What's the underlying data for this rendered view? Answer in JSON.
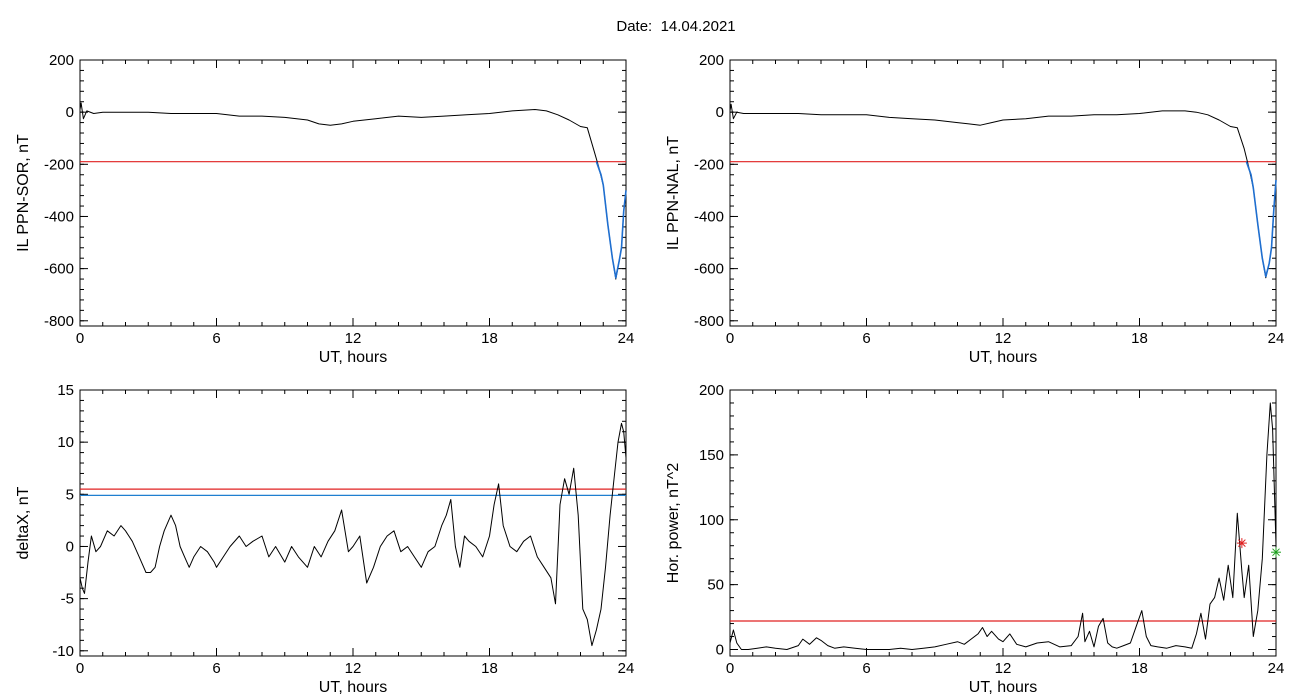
{
  "header": {
    "date_label": "Date:",
    "date_value": "14.04.2021"
  },
  "colors": {
    "trace": "#000000",
    "threshold_red": "#e02020",
    "threshold_blue": "#1f7fd0",
    "overlay_blue": "#1f6fd0",
    "marker_red": "#e02020",
    "marker_green": "#20a020"
  },
  "chart_data": [
    {
      "id": "il-ppn-sor",
      "type": "line",
      "ylabel": "IL PPN-SOR, nT",
      "xlabel": "UT, hours",
      "xlim": [
        0,
        24
      ],
      "ylim": [
        -820,
        200
      ],
      "x_ticks": [
        0,
        6,
        12,
        18,
        24
      ],
      "y_ticks": [
        200,
        0,
        -200,
        -400,
        -600,
        -800
      ],
      "thresholds": [
        {
          "value": -190,
          "color": "red"
        }
      ],
      "series": [
        {
          "color": "black",
          "x": [
            0,
            0.05,
            0.15,
            0.3,
            0.6,
            1.0,
            2.0,
            3.0,
            4.0,
            5.0,
            6.0,
            7.0,
            8.0,
            9.0,
            10.0,
            10.5,
            11.0,
            11.5,
            12.0,
            13.0,
            14.0,
            15.0,
            16.0,
            17.0,
            18.0,
            19.0,
            20.0,
            20.5,
            21.0,
            21.5,
            22.0,
            22.3,
            22.6,
            22.8,
            23.0,
            23.2,
            23.4,
            23.55,
            23.7,
            23.8,
            23.9,
            24.0
          ],
          "y": [
            10,
            35,
            -25,
            5,
            -5,
            0,
            0,
            0,
            -5,
            -5,
            -5,
            -15,
            -15,
            -20,
            -30,
            -45,
            -50,
            -45,
            -35,
            -25,
            -15,
            -20,
            -15,
            -10,
            -5,
            5,
            10,
            5,
            -10,
            -30,
            -55,
            -60,
            -150,
            -210,
            -280,
            -430,
            -560,
            -640,
            -570,
            -520,
            -380,
            -300
          ]
        },
        {
          "color": "blue",
          "x": [
            22.7,
            22.9,
            23.0,
            23.2,
            23.4,
            23.55,
            23.7,
            23.8,
            23.9,
            24.0
          ],
          "y": [
            -190,
            -240,
            -280,
            -430,
            -560,
            -635,
            -570,
            -520,
            -380,
            -300
          ]
        }
      ]
    },
    {
      "id": "il-ppn-nal",
      "type": "line",
      "ylabel": "IL PPN-NAL, nT",
      "xlabel": "UT, hours",
      "xlim": [
        0,
        24
      ],
      "ylim": [
        -820,
        200
      ],
      "x_ticks": [
        0,
        6,
        12,
        18,
        24
      ],
      "y_ticks": [
        200,
        0,
        -200,
        -400,
        -600,
        -800
      ],
      "thresholds": [
        {
          "value": -190,
          "color": "red"
        }
      ],
      "series": [
        {
          "color": "black",
          "x": [
            0,
            0.05,
            0.15,
            0.3,
            0.6,
            1.0,
            2.0,
            3.0,
            4.0,
            5.0,
            6.0,
            7.0,
            8.0,
            9.0,
            10.0,
            10.5,
            11.0,
            11.5,
            12.0,
            13.0,
            14.0,
            15.0,
            16.0,
            17.0,
            18.0,
            19.0,
            20.0,
            20.5,
            21.0,
            21.5,
            22.0,
            22.3,
            22.6,
            22.8,
            23.0,
            23.2,
            23.4,
            23.55,
            23.7,
            23.8,
            23.9,
            24.0
          ],
          "y": [
            5,
            30,
            -25,
            0,
            -5,
            -5,
            -5,
            -5,
            -10,
            -10,
            -10,
            -20,
            -25,
            -30,
            -40,
            -45,
            -50,
            -40,
            -30,
            -25,
            -15,
            -15,
            -10,
            -10,
            -5,
            5,
            5,
            0,
            -10,
            -30,
            -55,
            -60,
            -140,
            -210,
            -290,
            -430,
            -560,
            -635,
            -580,
            -520,
            -380,
            -260
          ]
        },
        {
          "color": "blue",
          "x": [
            22.7,
            22.9,
            23.0,
            23.2,
            23.4,
            23.55,
            23.7,
            23.8,
            23.9,
            24.0
          ],
          "y": [
            -190,
            -240,
            -290,
            -430,
            -560,
            -630,
            -580,
            -520,
            -380,
            -260
          ]
        }
      ]
    },
    {
      "id": "deltax",
      "type": "line",
      "ylabel": "deltaX, nT",
      "xlabel": "UT, hours",
      "xlim": [
        0,
        24
      ],
      "ylim": [
        -10.5,
        15
      ],
      "x_ticks": [
        0,
        6,
        12,
        18,
        24
      ],
      "y_ticks": [
        15,
        10,
        5,
        0,
        -5,
        -10
      ],
      "thresholds": [
        {
          "value": 5.5,
          "color": "red"
        },
        {
          "value": 4.9,
          "color": "blue"
        }
      ],
      "series": [
        {
          "color": "black",
          "x": [
            0,
            0.1,
            0.2,
            0.35,
            0.5,
            0.7,
            0.9,
            1.2,
            1.5,
            1.8,
            2.0,
            2.3,
            2.6,
            2.9,
            3.1,
            3.3,
            3.5,
            3.7,
            3.9,
            4.0,
            4.2,
            4.4,
            4.6,
            4.8,
            5.0,
            5.3,
            5.6,
            5.9,
            6.0,
            6.3,
            6.6,
            7.0,
            7.3,
            7.6,
            8.0,
            8.3,
            8.6,
            9.0,
            9.3,
            9.6,
            10.0,
            10.3,
            10.6,
            10.9,
            11.2,
            11.5,
            11.8,
            12.0,
            12.3,
            12.6,
            12.9,
            13.2,
            13.5,
            13.8,
            14.1,
            14.4,
            14.7,
            15.0,
            15.3,
            15.6,
            15.9,
            16.1,
            16.3,
            16.5,
            16.7,
            16.9,
            17.1,
            17.4,
            17.7,
            18.0,
            18.2,
            18.4,
            18.6,
            18.9,
            19.2,
            19.5,
            19.8,
            20.1,
            20.4,
            20.7,
            20.9,
            21.1,
            21.3,
            21.5,
            21.7,
            21.9,
            22.1,
            22.3,
            22.5,
            22.7,
            22.9,
            23.1,
            23.3,
            23.5,
            23.65,
            23.8,
            23.9,
            24.0
          ],
          "y": [
            -3,
            -4,
            -4.5,
            -1.5,
            1,
            -0.5,
            0,
            1.5,
            1,
            2,
            1.5,
            0.5,
            -1,
            -2.5,
            -2.5,
            -2,
            0,
            1.5,
            2.5,
            3,
            2,
            0,
            -1,
            -2,
            -1,
            0,
            -0.5,
            -1.5,
            -2,
            -1,
            0,
            1,
            0,
            0.5,
            1,
            -1,
            0,
            -1.5,
            0,
            -1,
            -2,
            0,
            -1,
            0.5,
            1.5,
            3.5,
            -0.5,
            0,
            1,
            -3.5,
            -2,
            0,
            1,
            1.5,
            -0.5,
            0,
            -1,
            -2,
            -0.5,
            0,
            2,
            3,
            4.5,
            0,
            -2,
            1,
            0.5,
            0,
            -1,
            1,
            4,
            6,
            2,
            0,
            -0.5,
            0.5,
            1,
            -1,
            -2,
            -3,
            -5.5,
            4,
            6.5,
            5,
            7.5,
            3,
            -6,
            -7,
            -9.5,
            -8,
            -6,
            -2,
            3,
            7,
            10,
            11.8,
            11,
            8.5
          ]
        }
      ]
    },
    {
      "id": "hor-power",
      "type": "line",
      "ylabel": "Hor. power, nT^2",
      "xlabel": "UT, hours",
      "xlim": [
        0,
        24
      ],
      "ylim": [
        -5,
        200
      ],
      "x_ticks": [
        0,
        6,
        12,
        18,
        24
      ],
      "y_ticks": [
        200,
        150,
        100,
        50,
        0
      ],
      "thresholds": [
        {
          "value": 22,
          "color": "red"
        }
      ],
      "markers": [
        {
          "x": 22.5,
          "y": 82,
          "color": "red",
          "symbol": "star"
        },
        {
          "x": 24.0,
          "y": 75,
          "color": "green",
          "symbol": "star"
        }
      ],
      "series": [
        {
          "color": "black",
          "x": [
            0,
            0.15,
            0.3,
            0.5,
            0.8,
            1.2,
            1.6,
            2.0,
            2.5,
            3.0,
            3.2,
            3.5,
            3.8,
            4.0,
            4.3,
            4.6,
            5.0,
            5.5,
            6.0,
            6.5,
            7.0,
            7.5,
            8.0,
            8.5,
            9.0,
            9.5,
            10.0,
            10.3,
            10.6,
            10.9,
            11.1,
            11.3,
            11.5,
            11.8,
            12.0,
            12.3,
            12.6,
            13.0,
            13.5,
            14.0,
            14.5,
            15.0,
            15.3,
            15.5,
            15.6,
            15.8,
            16.0,
            16.2,
            16.4,
            16.6,
            16.8,
            17.0,
            17.3,
            17.6,
            17.9,
            18.1,
            18.3,
            18.5,
            18.8,
            19.2,
            19.6,
            20.0,
            20.3,
            20.5,
            20.7,
            20.9,
            21.1,
            21.3,
            21.5,
            21.7,
            21.9,
            22.1,
            22.3,
            22.5,
            22.6,
            22.8,
            23.0,
            23.2,
            23.4,
            23.6,
            23.75,
            23.85,
            24.0
          ],
          "y": [
            5,
            15,
            5,
            0,
            0,
            1,
            2,
            1,
            0,
            3,
            8,
            4,
            9,
            7,
            3,
            1,
            2,
            1,
            0,
            0,
            0,
            1,
            0,
            1,
            2,
            4,
            6,
            4,
            8,
            12,
            17,
            10,
            14,
            8,
            6,
            12,
            4,
            2,
            5,
            6,
            2,
            3,
            10,
            28,
            6,
            14,
            2,
            18,
            24,
            5,
            2,
            1,
            3,
            5,
            20,
            30,
            10,
            3,
            2,
            1,
            3,
            2,
            1,
            12,
            28,
            8,
            35,
            40,
            55,
            38,
            65,
            40,
            105,
            60,
            40,
            65,
            10,
            30,
            70,
            150,
            190,
            170,
            80
          ]
        }
      ]
    }
  ]
}
